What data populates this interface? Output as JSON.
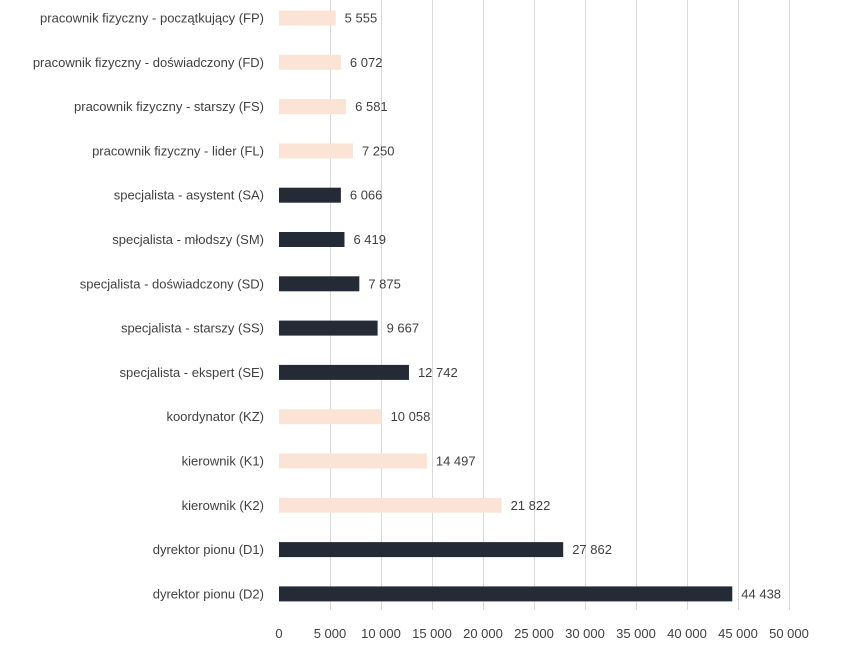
{
  "chart_data": {
    "type": "bar",
    "orientation": "horizontal",
    "title": "",
    "xlabel": "",
    "ylabel": "",
    "xlim": [
      0,
      50000
    ],
    "x_ticks": [
      0,
      5000,
      10000,
      15000,
      20000,
      25000,
      30000,
      35000,
      40000,
      45000,
      50000
    ],
    "x_tick_labels": [
      "0",
      "5 000",
      "10 000",
      "15 000",
      "20 000",
      "25 000",
      "30 000",
      "35 000",
      "40 000",
      "45 000",
      "50 000"
    ],
    "grid": "vertical",
    "legend": "none",
    "colors": {
      "light": "#fbe4d6",
      "dark": "#242b36",
      "grid": "#d9d9d9",
      "text": "#404040"
    },
    "categories": [
      "pracownik fizyczny - początkujący (FP)",
      "pracownik fizyczny - doświadczony (FD)",
      "pracownik fizyczny - starszy (FS)",
      "pracownik fizyczny - lider (FL)",
      "specjalista - asystent (SA)",
      "specjalista - młodszy (SM)",
      "specjalista - doświadczony (SD)",
      "specjalista - starszy (SS)",
      "specjalista - ekspert (SE)",
      "koordynator (KZ)",
      "kierownik (K1)",
      "kierownik (K2)",
      "dyrektor pionu (D1)",
      "dyrektor pionu (D2)"
    ],
    "values": [
      5555,
      6072,
      6581,
      7250,
      6066,
      6419,
      7875,
      9667,
      12742,
      10058,
      14497,
      21822,
      27862,
      44438
    ],
    "value_labels": [
      "5 555",
      "6 072",
      "6 581",
      "7 250",
      "6 066",
      "6 419",
      "7 875",
      "9 667",
      "12 742",
      "10 058",
      "14 497",
      "21 822",
      "27 862",
      "44 438"
    ],
    "bar_colors": [
      "light",
      "light",
      "light",
      "light",
      "dark",
      "dark",
      "dark",
      "dark",
      "dark",
      "light",
      "light",
      "light",
      "dark",
      "dark"
    ]
  }
}
